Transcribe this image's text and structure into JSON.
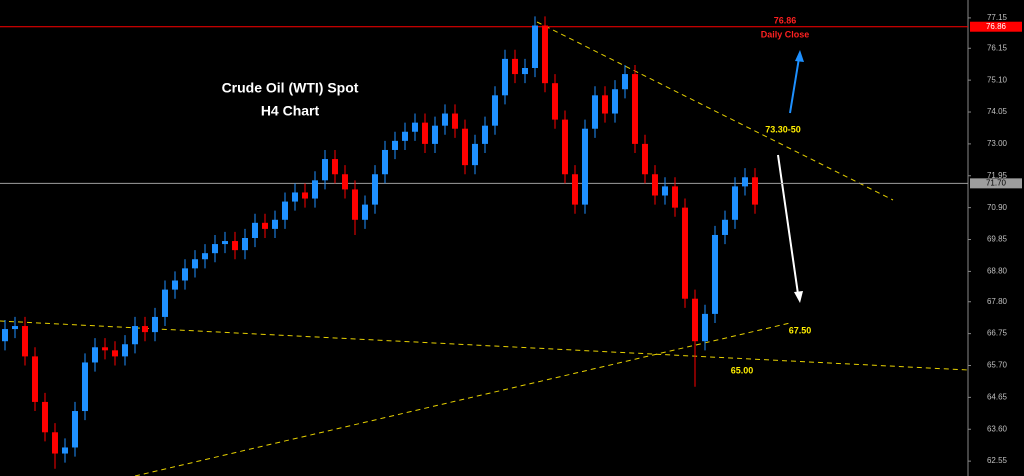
{
  "chart_data": {
    "type": "candlestick",
    "title": "Crude Oil (WTI) Spot",
    "subtitle": "H4 Chart",
    "up_color": "#1e90ff",
    "down_color": "#ff0000",
    "open": [
      66.5,
      66.9,
      67.0,
      66.0,
      64.5,
      63.5,
      62.8,
      63.0,
      64.2,
      65.8,
      66.3,
      66.2,
      66.0,
      66.4,
      67.0,
      66.8,
      67.3,
      68.2,
      68.5,
      68.9,
      69.2,
      69.4,
      69.7,
      69.8,
      69.5,
      69.9,
      70.4,
      70.2,
      70.5,
      71.1,
      71.4,
      71.2,
      71.8,
      72.5,
      72.0,
      71.5,
      70.5,
      71.0,
      72.0,
      72.8,
      73.1,
      73.4,
      73.7,
      73.0,
      73.6,
      74.0,
      73.5,
      72.3,
      73.0,
      73.6,
      74.6,
      75.8,
      75.3,
      75.5,
      76.9,
      75.0,
      73.8,
      72.0,
      71.0,
      73.5,
      74.6,
      74.0,
      74.8,
      75.3,
      73.0,
      72.0,
      71.3,
      71.6,
      70.9,
      67.9,
      66.5,
      67.4,
      70.0,
      70.5,
      71.6,
      71.9
    ],
    "high": [
      67.2,
      67.3,
      67.3,
      66.3,
      64.8,
      63.8,
      63.3,
      64.5,
      66.1,
      66.6,
      66.6,
      66.5,
      66.7,
      67.3,
      67.3,
      67.6,
      68.5,
      68.8,
      69.2,
      69.5,
      69.7,
      70.0,
      70.1,
      70.1,
      70.2,
      70.7,
      70.7,
      70.8,
      71.4,
      71.7,
      71.7,
      72.1,
      72.8,
      72.8,
      72.3,
      71.8,
      71.3,
      72.3,
      73.1,
      73.4,
      73.7,
      74.0,
      74.0,
      73.9,
      74.3,
      74.3,
      73.8,
      73.3,
      73.9,
      74.9,
      76.1,
      76.1,
      75.8,
      77.2,
      77.2,
      75.3,
      74.1,
      72.3,
      73.8,
      74.9,
      74.9,
      75.1,
      75.6,
      75.6,
      73.3,
      72.3,
      71.9,
      71.9,
      71.2,
      68.2,
      67.7,
      70.3,
      70.8,
      71.9,
      72.2,
      72.2
    ],
    "low": [
      66.2,
      66.6,
      65.7,
      64.2,
      63.2,
      62.3,
      62.5,
      62.7,
      63.9,
      65.5,
      65.9,
      65.7,
      65.7,
      66.1,
      66.5,
      66.5,
      67.0,
      67.9,
      68.2,
      68.6,
      68.9,
      69.1,
      69.4,
      69.2,
      69.2,
      69.6,
      69.9,
      69.9,
      70.2,
      70.8,
      70.9,
      70.9,
      71.5,
      71.7,
      71.2,
      70.0,
      70.2,
      70.7,
      71.7,
      72.5,
      72.8,
      73.1,
      72.7,
      72.7,
      73.3,
      73.2,
      72.0,
      72.0,
      72.7,
      73.3,
      74.3,
      75.0,
      75.0,
      75.2,
      74.7,
      73.5,
      71.7,
      70.7,
      70.7,
      73.2,
      73.7,
      73.7,
      74.5,
      72.7,
      71.7,
      71.0,
      71.0,
      70.6,
      67.6,
      65.0,
      66.2,
      67.1,
      69.7,
      70.2,
      71.3,
      70.7
    ],
    "close": [
      66.9,
      67.0,
      66.0,
      64.5,
      63.5,
      62.8,
      63.0,
      64.2,
      65.8,
      66.3,
      66.2,
      66.0,
      66.4,
      67.0,
      66.8,
      67.3,
      68.2,
      68.5,
      68.9,
      69.2,
      69.4,
      69.7,
      69.8,
      69.5,
      69.9,
      70.4,
      70.2,
      70.5,
      71.1,
      71.4,
      71.2,
      71.8,
      72.5,
      72.0,
      71.5,
      70.5,
      71.0,
      72.0,
      72.8,
      73.1,
      73.4,
      73.7,
      73.0,
      73.6,
      74.0,
      73.5,
      72.3,
      73.0,
      73.6,
      74.6,
      75.8,
      75.3,
      75.5,
      76.9,
      75.0,
      73.8,
      72.0,
      71.0,
      73.5,
      74.6,
      74.0,
      74.8,
      75.3,
      73.0,
      72.0,
      71.3,
      71.6,
      70.9,
      67.9,
      66.5,
      67.4,
      70.0,
      70.5,
      71.6,
      71.9,
      71.0
    ],
    "ylim": [
      62.06,
      77.74
    ],
    "yticks": [
      77.15,
      76.15,
      {
        "value": 75.1,
        "label": "75.10"
      },
      74.05,
      {
        "value": 73,
        "label": "73.00"
      },
      71.95,
      {
        "value": 70.9,
        "label": "70.90"
      },
      69.85,
      {
        "value": 68.8,
        "label": "68.80"
      },
      {
        "value": 67.8,
        "label": "67.80"
      },
      66.75,
      {
        "value": 65.7,
        "label": "65.70"
      },
      64.65,
      {
        "value": 63.6,
        "label": "63.60"
      },
      62.55
    ],
    "price_lines": [
      {
        "value": 76.86,
        "color": "#ff0000"
      },
      {
        "value": {
          "value": 71.7,
          "label": "71.70"
        },
        "color": "#9e9e9e"
      }
    ],
    "annotations": [
      "76.86",
      "Daily Close",
      "73.30-50",
      "67.50",
      "65.00"
    ]
  }
}
